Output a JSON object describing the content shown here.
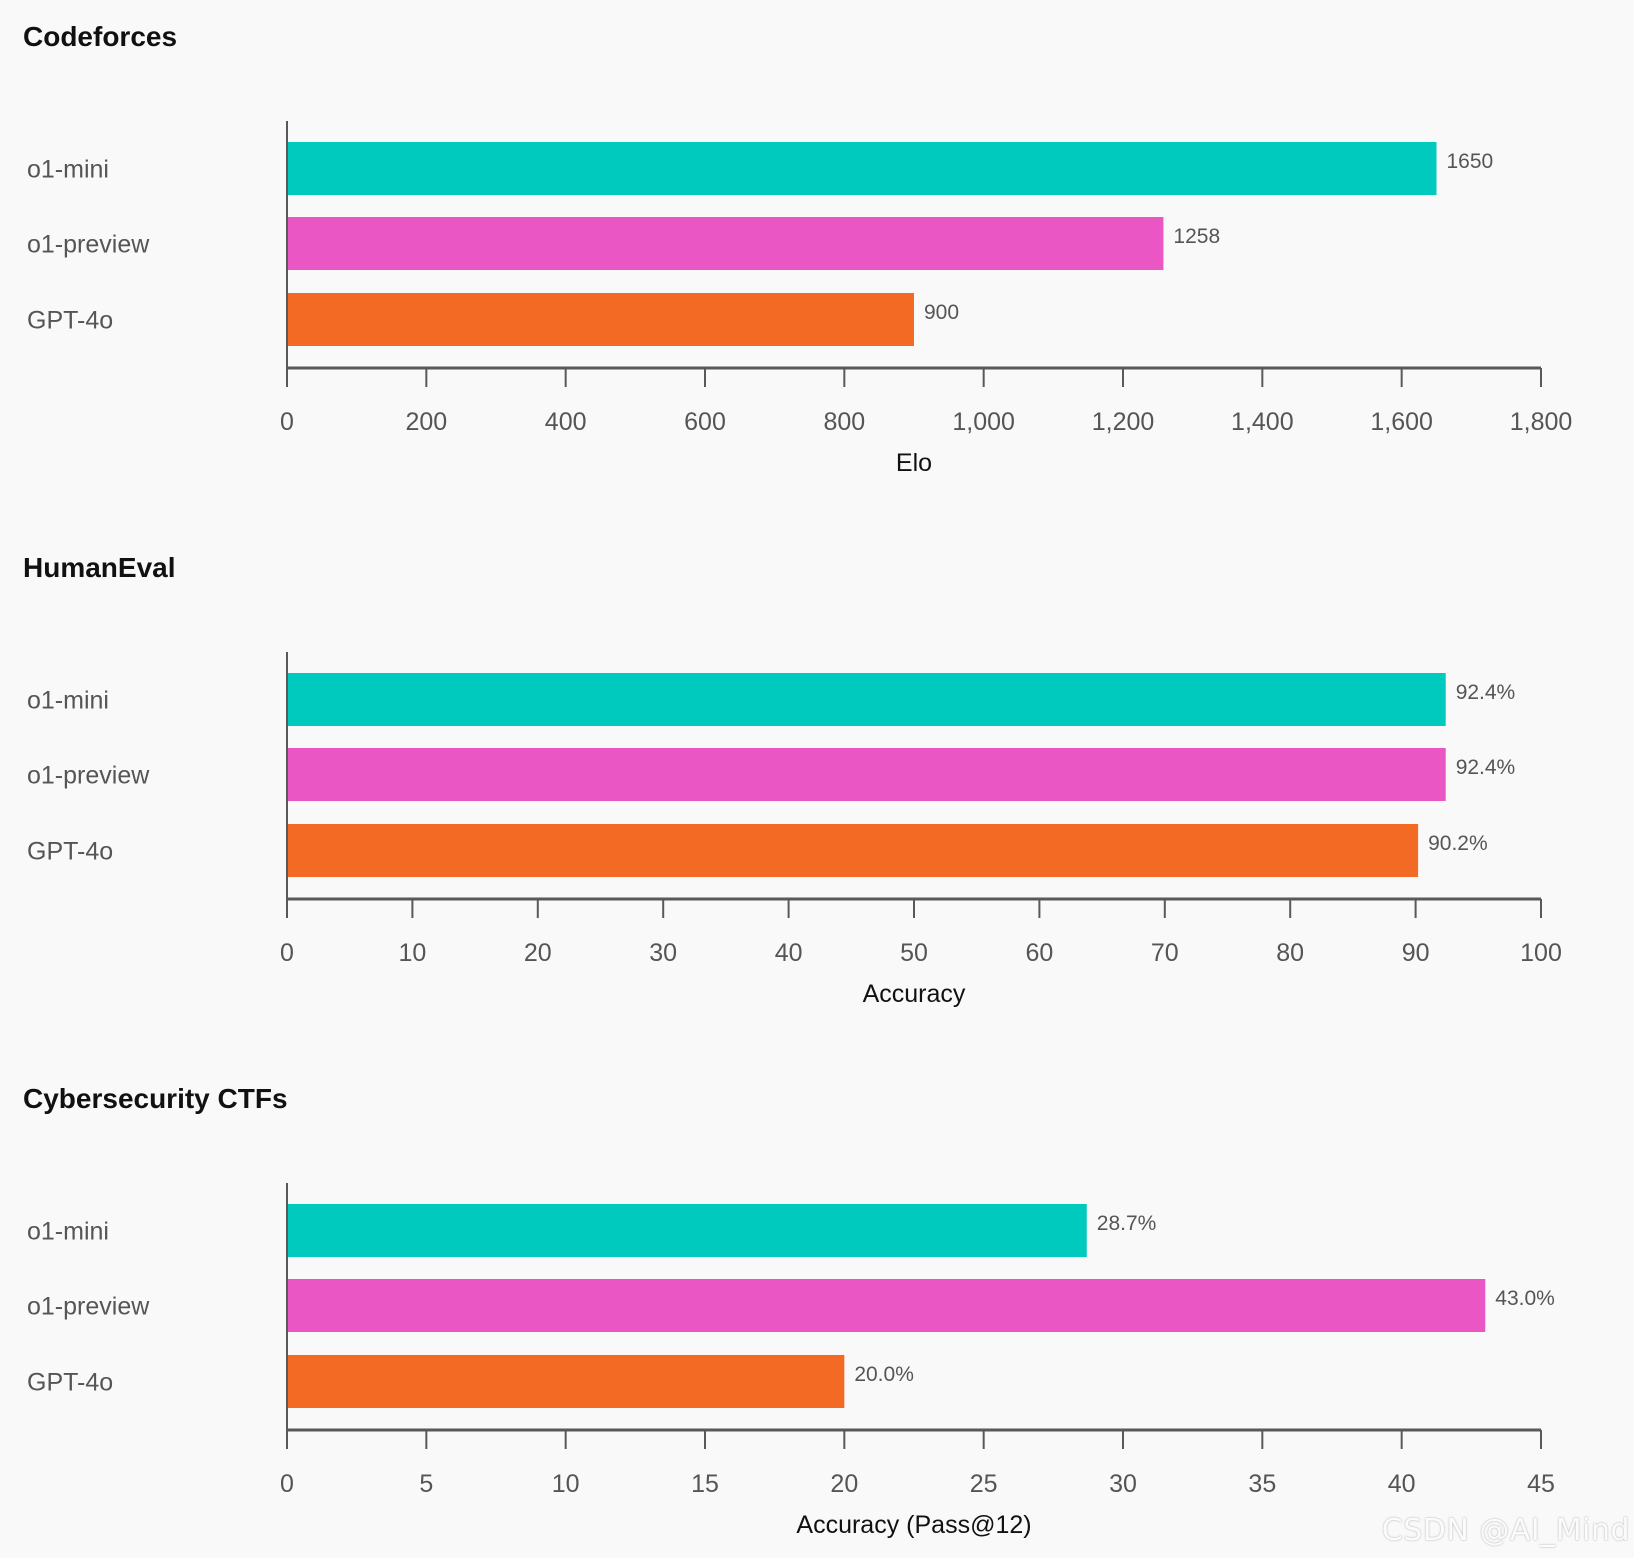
{
  "colors": {
    "background": "#f9f9f9",
    "o1_mini": "#00c9bd",
    "o1_preview": "#ea56c4",
    "gpt_4o": "#f26a23",
    "axis": "#595959",
    "label": "#555555",
    "value_label": "#555555",
    "title": "#111111"
  },
  "watermark": "CSDN @AI_Mind",
  "chart_data": [
    {
      "type": "bar",
      "orientation": "horizontal",
      "title": "Codeforces",
      "xlabel": "Elo",
      "ylabel": "",
      "categories": [
        "o1-mini",
        "o1-preview",
        "GPT-4o"
      ],
      "values": [
        1650,
        1258,
        900
      ],
      "value_labels": [
        "1650",
        "1258",
        "900"
      ],
      "xlim": [
        0,
        1800
      ],
      "ticks": [
        0,
        200,
        400,
        600,
        800,
        1000,
        1200,
        1400,
        1600,
        1800
      ],
      "tick_labels": [
        "0",
        "200",
        "400",
        "600",
        "800",
        "1,000",
        "1,200",
        "1,400",
        "1,600",
        "1,800"
      ],
      "grid": false,
      "legend": "none"
    },
    {
      "type": "bar",
      "orientation": "horizontal",
      "title": "HumanEval",
      "xlabel": "Accuracy",
      "ylabel": "",
      "categories": [
        "o1-mini",
        "o1-preview",
        "GPT-4o"
      ],
      "values": [
        92.4,
        92.4,
        90.2
      ],
      "value_labels": [
        "92.4%",
        "92.4%",
        "90.2%"
      ],
      "xlim": [
        0,
        100
      ],
      "ticks": [
        0,
        10,
        20,
        30,
        40,
        50,
        60,
        70,
        80,
        90,
        100
      ],
      "tick_labels": [
        "0",
        "10",
        "20",
        "30",
        "40",
        "50",
        "60",
        "70",
        "80",
        "90",
        "100"
      ],
      "grid": false,
      "legend": "none"
    },
    {
      "type": "bar",
      "orientation": "horizontal",
      "title": "Cybersecurity CTFs",
      "xlabel": "Accuracy (Pass@12)",
      "ylabel": "",
      "categories": [
        "o1-mini",
        "o1-preview",
        "GPT-4o"
      ],
      "values": [
        28.7,
        43.0,
        20.0
      ],
      "value_labels": [
        "28.7%",
        "43.0%",
        "20.0%"
      ],
      "xlim": [
        0,
        45
      ],
      "ticks": [
        0,
        5,
        10,
        15,
        20,
        25,
        30,
        35,
        40,
        45
      ],
      "tick_labels": [
        "0",
        "5",
        "10",
        "15",
        "20",
        "25",
        "30",
        "35",
        "40",
        "45"
      ],
      "grid": false,
      "legend": "none"
    }
  ]
}
